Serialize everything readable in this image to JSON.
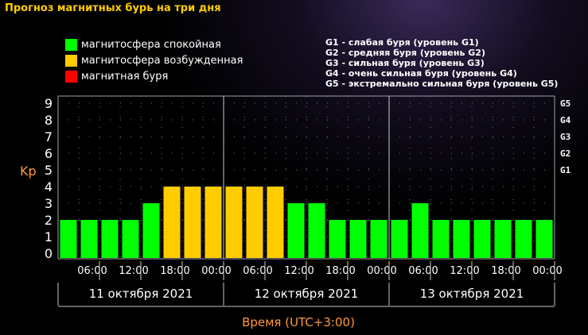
{
  "title": "Прогноз магнитных бурь на три дня",
  "legend": [
    {
      "label": "магнитосфера спокойная",
      "color": "#00ff00"
    },
    {
      "label": "магнитосфера возбужденная",
      "color": "#ffcc00"
    },
    {
      "label": "магнитная буря",
      "color": "#ff0000"
    }
  ],
  "g_legend": [
    "G1 - слабая буря (уровень G1)",
    "G2 - средняя буря (уровень G2)",
    "G3 - сильная буря (уровень G3)",
    "G4 - очень сильная буря (уровень G4)",
    "G5 - экстремально сильная буря (уровень G5)"
  ],
  "chart_data": {
    "type": "bar",
    "ylabel": "Kp",
    "xlabel": "Время (UTC+3:00)",
    "ylim": [
      0,
      9
    ],
    "yticks": [
      "0",
      "1",
      "2",
      "3",
      "4",
      "5",
      "6",
      "7",
      "8",
      "9"
    ],
    "right_ticks": [
      {
        "kp": 5,
        "label": "G1"
      },
      {
        "kp": 6,
        "label": "G2"
      },
      {
        "kp": 7,
        "label": "G3"
      },
      {
        "kp": 8,
        "label": "G4"
      },
      {
        "kp": 9,
        "label": "G5"
      }
    ],
    "time_ticks": [
      "06:00",
      "12:00",
      "18:00",
      "00:00",
      "06:00",
      "12:00",
      "18:00",
      "00:00",
      "06:00",
      "12:00",
      "18:00",
      "00:00"
    ],
    "days": [
      "11 октября 2021",
      "12 октября 2021",
      "13 октября 2021"
    ],
    "values": [
      2,
      2,
      2,
      2,
      3,
      4,
      4,
      4,
      4,
      4,
      4,
      3,
      3,
      2,
      2,
      2,
      2,
      3,
      2,
      2,
      2,
      2,
      2,
      2
    ],
    "colors": {
      "quiet": "#00ff00",
      "active": "#ffcc00",
      "storm": "#ff0000"
    },
    "grid": true
  }
}
